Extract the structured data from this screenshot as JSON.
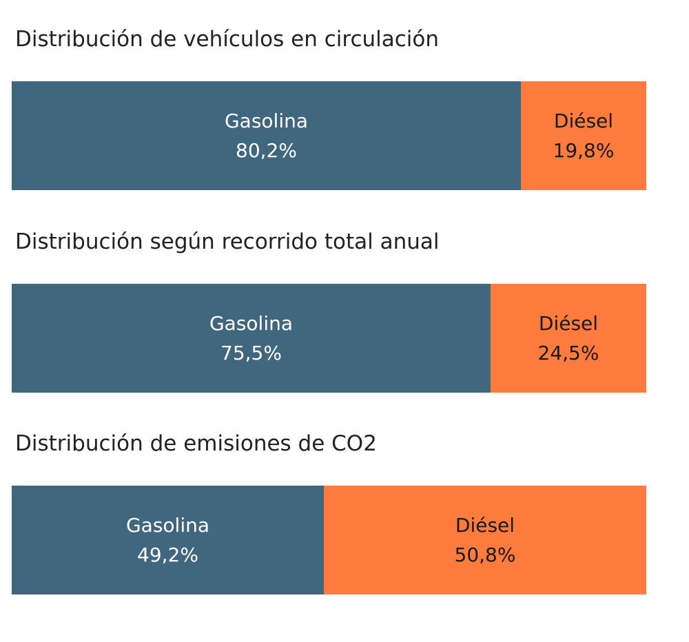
{
  "colors": {
    "gasolina": "#41677f",
    "diesel": "#fe7b3e",
    "light_text": "#ffffff",
    "dark_text": "#1a1a1a"
  },
  "chart_data": [
    {
      "type": "bar",
      "orientation": "horizontal-stacked-100",
      "title": "Distribución de vehículos en circulación",
      "categories": [
        "Gasolina",
        "Diésel"
      ],
      "values": [
        80.2,
        19.8
      ],
      "value_labels": [
        "80,2%",
        "19,8%"
      ],
      "unit": "%"
    },
    {
      "type": "bar",
      "orientation": "horizontal-stacked-100",
      "title": "Distribución según recorrido total anual",
      "categories": [
        "Gasolina",
        "Diésel"
      ],
      "values": [
        75.5,
        24.5
      ],
      "value_labels": [
        "75,5%",
        "24,5%"
      ],
      "unit": "%"
    },
    {
      "type": "bar",
      "orientation": "horizontal-stacked-100",
      "title": "Distribución de emisiones de CO2",
      "categories": [
        "Gasolina",
        "Diésel"
      ],
      "values": [
        49.2,
        50.8
      ],
      "value_labels": [
        "49,2%",
        "50,8%"
      ],
      "unit": "%"
    }
  ]
}
